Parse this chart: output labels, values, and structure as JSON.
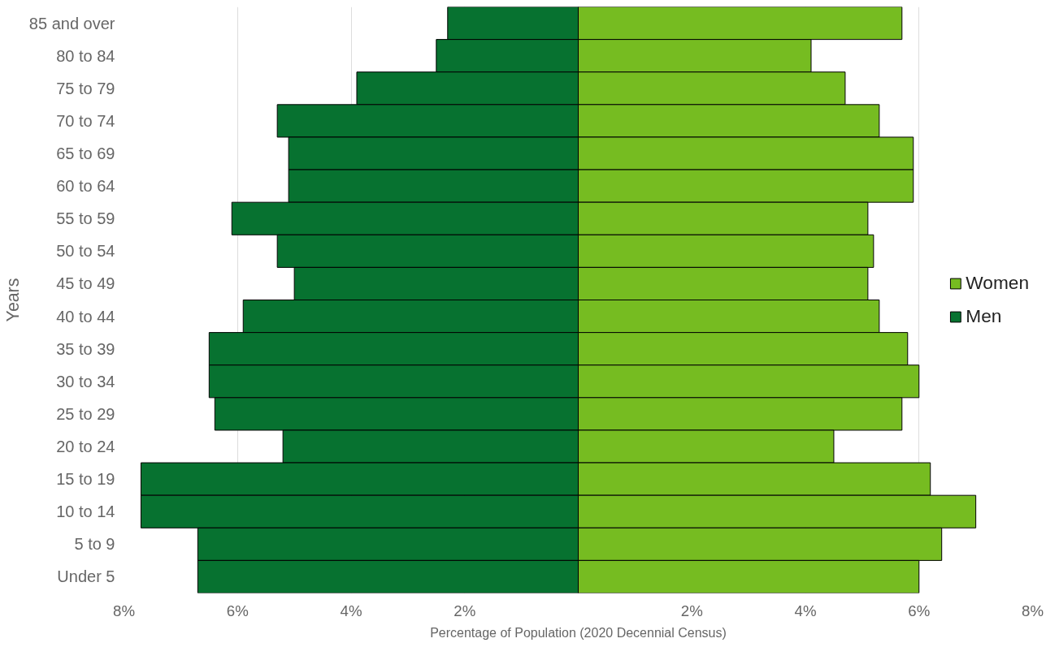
{
  "chart_data": {
    "type": "bar",
    "orientation": "horizontal",
    "xlabel": "Percentage of Population (2020 Decennial Census)",
    "ylabel": "Years",
    "categories": [
      "85 and over",
      "80 to 84",
      "75 to 79",
      "70 to 74",
      "65 to 69",
      "60 to 64",
      "55 to 59",
      "50 to 54",
      "45 to 49",
      "40 to 44",
      "35 to 39",
      "30 to 34",
      "25 to 29",
      "20 to 24",
      "15 to 19",
      "10 to 14",
      "5 to 9",
      "Under 5"
    ],
    "series": [
      {
        "name": "Women",
        "color": "#76bc21",
        "values": [
          5.7,
          4.1,
          4.7,
          5.3,
          5.9,
          5.9,
          5.1,
          5.2,
          5.1,
          5.3,
          5.8,
          6.0,
          5.7,
          4.5,
          6.2,
          7.0,
          6.4,
          6.0
        ]
      },
      {
        "name": "Men",
        "color": "#077230",
        "values": [
          -2.3,
          -2.5,
          -3.9,
          -5.3,
          -5.1,
          -5.1,
          -6.1,
          -5.3,
          -5.0,
          -5.9,
          -6.5,
          -6.5,
          -6.4,
          -5.2,
          -7.7,
          -7.7,
          -6.7,
          -6.7
        ]
      }
    ],
    "xlim": [
      -8,
      8
    ],
    "stacked": true,
    "xticks": [
      {
        "value": -8,
        "label": "8%"
      },
      {
        "value": -6,
        "label": "6%"
      },
      {
        "value": -4,
        "label": "4%"
      },
      {
        "value": -2,
        "label": "2%"
      },
      {
        "value": 2,
        "label": "2%"
      },
      {
        "value": 4,
        "label": "4%"
      },
      {
        "value": 6,
        "label": "6%"
      },
      {
        "value": 8,
        "label": "8%"
      }
    ],
    "grid": "x",
    "legend": "right"
  }
}
